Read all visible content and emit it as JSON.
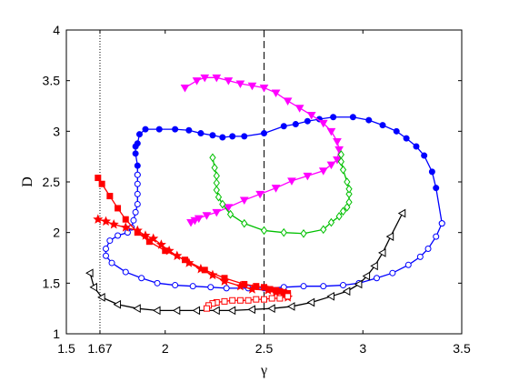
{
  "chart_data": {
    "type": "line",
    "xlabel": "γ",
    "ylabel": "D",
    "xlim": [
      1.5,
      3.5
    ],
    "ylim": [
      1,
      4
    ],
    "xticks": [
      1.5,
      1.67,
      2,
      2.5,
      3,
      3.5
    ],
    "xtick_labels": [
      "1.5",
      "1.67",
      "2",
      "2.5",
      "3",
      "3.5"
    ],
    "yticks": [
      1,
      1.5,
      2,
      2.5,
      3,
      3.5,
      4
    ],
    "ytick_labels": [
      "1",
      "1.5",
      "2",
      "2.5",
      "3",
      "3.5",
      "4"
    ],
    "grid": false,
    "legend": "none",
    "reference_lines": [
      {
        "x": 1.67,
        "style": "dotted",
        "color": "#000000"
      },
      {
        "x": 2.5,
        "style": "dashed",
        "color": "#000000"
      }
    ],
    "series": [
      {
        "color": "#0000ff",
        "marker": "circle-filled",
        "points": [
          [
            1.86,
            2.57
          ],
          [
            1.86,
            2.66
          ],
          [
            1.85,
            2.78
          ],
          [
            1.85,
            2.85
          ],
          [
            1.86,
            2.88
          ],
          [
            1.87,
            2.97
          ],
          [
            1.9,
            3.02
          ],
          [
            1.97,
            3.02
          ],
          [
            2.05,
            3.02
          ],
          [
            2.12,
            3.01
          ],
          [
            2.18,
            2.98
          ],
          [
            2.24,
            2.96
          ],
          [
            2.29,
            2.94
          ],
          [
            2.34,
            2.95
          ],
          [
            2.4,
            2.95
          ],
          [
            2.5,
            2.98
          ],
          [
            2.6,
            3.05
          ],
          [
            2.66,
            3.07
          ],
          [
            2.72,
            3.1
          ],
          [
            2.78,
            3.12
          ],
          [
            2.85,
            3.14
          ],
          [
            2.95,
            3.14
          ],
          [
            3.03,
            3.11
          ],
          [
            3.1,
            3.06
          ],
          [
            3.17,
            3.0
          ],
          [
            3.22,
            2.93
          ],
          [
            3.27,
            2.85
          ],
          [
            3.31,
            2.76
          ],
          [
            3.35,
            2.6
          ],
          [
            3.37,
            2.44
          ],
          [
            3.4,
            2.09
          ]
        ]
      },
      {
        "color": "#0000ff",
        "marker": "circle-open",
        "points": [
          [
            3.4,
            2.09
          ],
          [
            3.37,
            1.96
          ],
          [
            3.33,
            1.84
          ],
          [
            3.29,
            1.76
          ],
          [
            3.23,
            1.68
          ],
          [
            3.15,
            1.6
          ],
          [
            3.07,
            1.55
          ],
          [
            2.98,
            1.5
          ],
          [
            2.9,
            1.48
          ],
          [
            2.8,
            1.47
          ],
          [
            2.7,
            1.47
          ],
          [
            2.6,
            1.46
          ],
          [
            2.5,
            1.45
          ],
          [
            2.42,
            1.45
          ],
          [
            2.31,
            1.45
          ],
          [
            2.23,
            1.46
          ],
          [
            2.14,
            1.47
          ],
          [
            2.05,
            1.48
          ],
          [
            1.96,
            1.5
          ],
          [
            1.88,
            1.55
          ],
          [
            1.8,
            1.61
          ],
          [
            1.73,
            1.7
          ],
          [
            1.7,
            1.77
          ],
          [
            1.7,
            1.84
          ],
          [
            1.72,
            1.92
          ],
          [
            1.76,
            1.97
          ],
          [
            1.81,
            2.0
          ],
          [
            1.83,
            2.05
          ],
          [
            1.84,
            2.12
          ],
          [
            1.85,
            2.2
          ],
          [
            1.86,
            2.28
          ],
          [
            1.86,
            2.38
          ],
          [
            1.86,
            2.48
          ],
          [
            1.86,
            2.57
          ]
        ]
      },
      {
        "color": "#ff00ff",
        "marker": "triangle-down-filled",
        "points": [
          [
            2.1,
            3.43
          ],
          [
            2.16,
            3.5
          ],
          [
            2.2,
            3.53
          ],
          [
            2.26,
            3.53
          ],
          [
            2.32,
            3.5
          ],
          [
            2.38,
            3.47
          ],
          [
            2.44,
            3.45
          ],
          [
            2.5,
            3.43
          ],
          [
            2.56,
            3.38
          ],
          [
            2.62,
            3.3
          ],
          [
            2.68,
            3.23
          ],
          [
            2.74,
            3.16
          ],
          [
            2.8,
            3.08
          ],
          [
            2.84,
            3.0
          ],
          [
            2.87,
            2.9
          ],
          [
            2.88,
            2.82
          ],
          [
            2.87,
            2.72
          ],
          [
            2.84,
            2.67
          ],
          [
            2.8,
            2.61
          ],
          [
            2.72,
            2.56
          ],
          [
            2.64,
            2.51
          ],
          [
            2.56,
            2.44
          ],
          [
            2.48,
            2.38
          ],
          [
            2.4,
            2.32
          ],
          [
            2.32,
            2.25
          ],
          [
            2.26,
            2.2
          ],
          [
            2.21,
            2.17
          ],
          [
            2.17,
            2.14
          ],
          [
            2.15,
            2.12
          ],
          [
            2.13,
            2.1
          ]
        ]
      },
      {
        "color": "#00c000",
        "marker": "diamond-open",
        "points": [
          [
            2.24,
            2.74
          ],
          [
            2.25,
            2.64
          ],
          [
            2.26,
            2.56
          ],
          [
            2.26,
            2.49
          ],
          [
            2.26,
            2.42
          ],
          [
            2.27,
            2.35
          ],
          [
            2.29,
            2.28
          ],
          [
            2.33,
            2.18
          ],
          [
            2.4,
            2.09
          ],
          [
            2.5,
            2.02
          ],
          [
            2.6,
            2.0
          ],
          [
            2.7,
            1.99
          ],
          [
            2.8,
            2.03
          ],
          [
            2.84,
            2.1
          ],
          [
            2.88,
            2.16
          ],
          [
            2.9,
            2.21
          ],
          [
            2.92,
            2.25
          ],
          [
            2.93,
            2.3
          ],
          [
            2.93,
            2.38
          ],
          [
            2.93,
            2.43
          ],
          [
            2.92,
            2.5
          ],
          [
            2.9,
            2.62
          ],
          [
            2.89,
            2.7
          ],
          [
            2.89,
            2.77
          ]
        ]
      },
      {
        "color": "#000000",
        "marker": "triangle-left-open",
        "points": [
          [
            1.62,
            1.6
          ],
          [
            1.64,
            1.46
          ],
          [
            1.68,
            1.36
          ],
          [
            1.76,
            1.29
          ],
          [
            1.86,
            1.25
          ],
          [
            1.96,
            1.23
          ],
          [
            2.06,
            1.23
          ],
          [
            2.16,
            1.23
          ],
          [
            2.26,
            1.23
          ],
          [
            2.34,
            1.23
          ],
          [
            2.44,
            1.24
          ],
          [
            2.54,
            1.25
          ],
          [
            2.64,
            1.27
          ],
          [
            2.74,
            1.31
          ],
          [
            2.84,
            1.37
          ],
          [
            2.92,
            1.42
          ],
          [
            2.98,
            1.49
          ],
          [
            3.02,
            1.57
          ],
          [
            3.06,
            1.67
          ],
          [
            3.1,
            1.8
          ],
          [
            3.14,
            1.96
          ],
          [
            3.2,
            2.19
          ]
        ]
      },
      {
        "color": "#ff0000",
        "marker": "square-filled",
        "points": [
          [
            1.66,
            2.54
          ],
          [
            1.68,
            2.48
          ],
          [
            1.72,
            2.36
          ],
          [
            1.76,
            2.24
          ],
          [
            1.8,
            2.13
          ],
          [
            1.86,
            2.0
          ],
          [
            1.92,
            1.91
          ],
          [
            2.0,
            1.82
          ],
          [
            2.1,
            1.73
          ],
          [
            2.2,
            1.63
          ],
          [
            2.3,
            1.55
          ],
          [
            2.4,
            1.49
          ],
          [
            2.46,
            1.47
          ],
          [
            2.5,
            1.46
          ],
          [
            2.53,
            1.44
          ],
          [
            2.56,
            1.43
          ],
          [
            2.58,
            1.42
          ],
          [
            2.6,
            1.41
          ],
          [
            2.62,
            1.4
          ],
          [
            2.62,
            1.38
          ]
        ]
      },
      {
        "color": "#ff0000",
        "marker": "star",
        "points": [
          [
            1.66,
            2.13
          ],
          [
            1.7,
            2.11
          ],
          [
            1.74,
            2.08
          ],
          [
            1.8,
            2.05
          ],
          [
            1.86,
            2.02
          ],
          [
            1.9,
            1.97
          ],
          [
            1.94,
            1.94
          ],
          [
            1.98,
            1.88
          ],
          [
            2.02,
            1.82
          ],
          [
            2.06,
            1.77
          ],
          [
            2.12,
            1.7
          ],
          [
            2.18,
            1.64
          ],
          [
            2.24,
            1.58
          ],
          [
            2.3,
            1.52
          ],
          [
            2.38,
            1.47
          ],
          [
            2.44,
            1.44
          ],
          [
            2.52,
            1.43
          ],
          [
            2.56,
            1.41
          ],
          [
            2.6,
            1.39
          ],
          [
            2.62,
            1.36
          ]
        ]
      },
      {
        "color": "#ff0000",
        "marker": "square-open",
        "points": [
          [
            2.62,
            1.37
          ],
          [
            2.58,
            1.35
          ],
          [
            2.54,
            1.35
          ],
          [
            2.5,
            1.34
          ],
          [
            2.46,
            1.34
          ],
          [
            2.42,
            1.33
          ],
          [
            2.38,
            1.33
          ],
          [
            2.34,
            1.33
          ],
          [
            2.3,
            1.32
          ],
          [
            2.26,
            1.31
          ],
          [
            2.24,
            1.3
          ],
          [
            2.22,
            1.28
          ],
          [
            2.21,
            1.25
          ]
        ]
      }
    ]
  }
}
